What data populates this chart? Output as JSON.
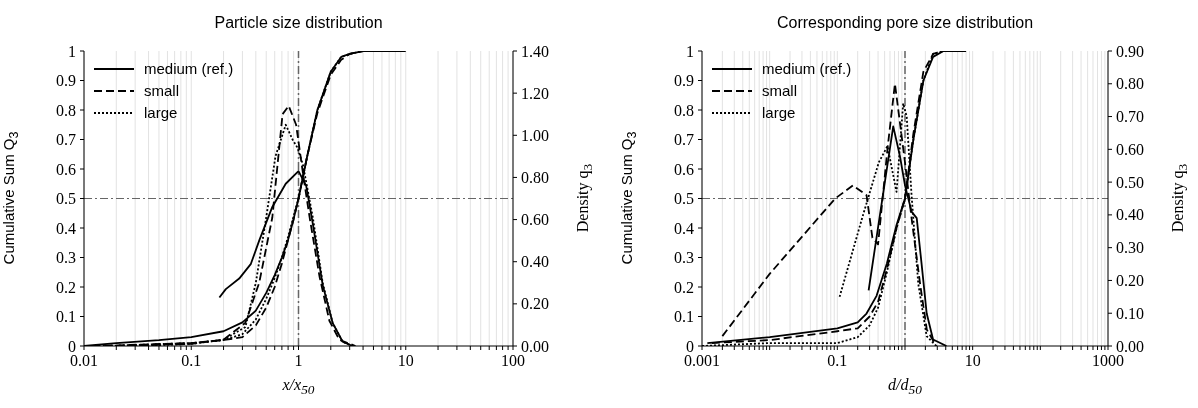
{
  "chart_data": [
    {
      "type": "line",
      "title": "Particle size distribution",
      "xlabel": "x/x$_{50}$",
      "ylabel": "Cumulative Sum Q$_{3}$",
      "y2label": "Density q$_{3}$",
      "log": "x",
      "grid": "x",
      "legend": "top left",
      "xlim": [
        0.01,
        100
      ],
      "xticks": [
        0.01,
        {
          "value": 0.02,
          "label": null
        },
        {
          "value": 0.03,
          "label": null
        },
        {
          "value": 0.04,
          "label": null
        },
        {
          "value": 0.05,
          "label": null
        },
        {
          "value": 0.06,
          "label": null
        },
        {
          "value": 0.07,
          "label": null
        },
        {
          "value": 0.08,
          "label": null
        },
        {
          "value": 0.09,
          "label": null
        },
        0.1,
        {
          "value": 0.2,
          "label": null
        },
        {
          "value": 0.3,
          "label": null
        },
        {
          "value": 0.4,
          "label": null
        },
        {
          "value": 0.5,
          "label": null
        },
        {
          "value": 0.6,
          "label": null
        },
        {
          "value": 0.7,
          "label": null
        },
        {
          "value": 0.8,
          "label": null
        },
        {
          "value": 0.9,
          "label": null
        },
        1,
        {
          "value": 2,
          "label": null
        },
        {
          "value": 3,
          "label": null
        },
        {
          "value": 4,
          "label": null
        },
        {
          "value": 5,
          "label": null
        },
        {
          "value": 6,
          "label": null
        },
        {
          "value": 7,
          "label": null
        },
        {
          "value": 8,
          "label": null
        },
        {
          "value": 9,
          "label": null
        },
        10,
        {
          "value": 20,
          "label": null
        },
        {
          "value": 30,
          "label": null
        },
        {
          "value": 40,
          "label": null
        },
        {
          "value": 50,
          "label": null
        },
        {
          "value": 60,
          "label": null
        },
        {
          "value": 70,
          "label": null
        },
        {
          "value": 80,
          "label": null
        },
        {
          "value": 90,
          "label": null
        },
        100
      ],
      "ylim": [
        0,
        1
      ],
      "yticks": [
        0,
        0.1,
        0.2,
        0.3,
        0.4,
        0.5,
        0.6,
        0.7,
        0.8,
        0.9,
        1
      ],
      "y2lim": [
        0,
        1.4
      ],
      "y2ticks": [
        {
          "value": 0,
          "label": "0.00"
        },
        {
          "value": 0.2,
          "label": "0.20"
        },
        {
          "value": 0.4,
          "label": "0.40"
        },
        {
          "value": 0.6,
          "label": "0.60"
        },
        {
          "value": 0.8,
          "label": "0.80"
        },
        {
          "value": 1,
          "label": "1.00"
        },
        {
          "value": 1.2,
          "label": "1.20"
        },
        {
          "value": 1.4,
          "label": "1.40"
        }
      ],
      "ref_lines": [
        {
          "axis": "x",
          "value": 1,
          "color": "#666666"
        },
        {
          "axis": "y",
          "value": 0.5,
          "color": "#666666"
        }
      ],
      "series": [
        {
          "name": "medium (ref.)",
          "color": "#000000",
          "line_style": "solid",
          "x": [
            0.01,
            0.02,
            0.05,
            0.1,
            0.2,
            0.3,
            0.4,
            0.5,
            0.6,
            0.7,
            0.8,
            0.9,
            1,
            1.2,
            1.5,
            2,
            2.5,
            3,
            4,
            10
          ],
          "values": [
            0,
            0.01,
            0.02,
            0.03,
            0.05,
            0.08,
            0.12,
            0.18,
            0.24,
            0.3,
            0.36,
            0.43,
            0.5,
            0.64,
            0.8,
            0.93,
            0.98,
            0.99,
            1,
            1
          ]
        },
        {
          "name": "small",
          "color": "#000000",
          "line_style": "dashed",
          "x": [
            0.012,
            0.1,
            0.2,
            0.3,
            0.4,
            0.5,
            0.6,
            0.7,
            0.8,
            0.9,
            1,
            1.2,
            1.5,
            2,
            2.5,
            3,
            4,
            6
          ],
          "values": [
            0,
            0.01,
            0.02,
            0.03,
            0.07,
            0.13,
            0.2,
            0.28,
            0.36,
            0.43,
            0.5,
            0.64,
            0.79,
            0.92,
            0.97,
            0.99,
            1,
            1
          ]
        },
        {
          "name": "large",
          "color": "#000000",
          "line_style": "dotted",
          "x": [
            0.015,
            0.1,
            0.2,
            0.3,
            0.4,
            0.5,
            0.6,
            0.7,
            0.8,
            0.9,
            1,
            1.2,
            1.5,
            2,
            2.5,
            3,
            4,
            8
          ],
          "values": [
            0,
            0.01,
            0.02,
            0.04,
            0.09,
            0.16,
            0.23,
            0.3,
            0.37,
            0.44,
            0.5,
            0.64,
            0.8,
            0.93,
            0.98,
            0.99,
            1,
            1
          ]
        },
        {
          "color": "#000000",
          "line_style": "solid",
          "axis": "y2",
          "x": [
            0.183,
            0.21,
            0.28,
            0.36,
            0.43,
            0.57,
            0.76,
            1,
            1.18,
            1.36,
            1.68,
            2.08,
            2.58,
            3.2
          ],
          "values": [
            0.23,
            0.27,
            0.32,
            0.39,
            0.5,
            0.66,
            0.77,
            0.83,
            0.76,
            0.58,
            0.29,
            0.11,
            0.02,
            0
          ]
        },
        {
          "color": "#000000",
          "line_style": "dashed",
          "axis": "y2",
          "x": [
            0.02,
            0.1,
            0.2,
            0.32,
            0.43,
            0.57,
            0.71,
            0.81,
            0.95,
            1.1,
            1.27,
            1.57,
            1.94,
            2.4,
            3.4
          ],
          "values": [
            0,
            0.01,
            0.03,
            0.11,
            0.3,
            0.61,
            1.1,
            1.14,
            1.05,
            0.82,
            0.61,
            0.33,
            0.12,
            0.03,
            0
          ]
        },
        {
          "color": "#000000",
          "line_style": "dotted",
          "axis": "y2",
          "x": [
            0.03,
            0.1,
            0.2,
            0.32,
            0.4,
            0.5,
            0.61,
            0.76,
            0.88,
            0.98,
            1.1,
            1.36,
            1.68,
            2.08,
            2.58,
            3.2
          ],
          "values": [
            0,
            0.01,
            0.03,
            0.09,
            0.3,
            0.61,
            0.9,
            1.05,
            0.98,
            0.94,
            0.86,
            0.61,
            0.3,
            0.11,
            0.02,
            0
          ]
        }
      ]
    },
    {
      "type": "line",
      "title": "Corresponding pore size distribution",
      "xlabel": "d/d$_{50}$",
      "ylabel": "Cumulative Sum Q$_{3}$",
      "y2label": "Density q$_{3}$",
      "log": "x",
      "grid": "x",
      "legend": "top left",
      "xlim": [
        0.001,
        1000
      ],
      "xticks": [
        0.001,
        {
          "value": 0.002,
          "label": null
        },
        {
          "value": 0.003,
          "label": null
        },
        {
          "value": 0.004,
          "label": null
        },
        {
          "value": 0.005,
          "label": null
        },
        {
          "value": 0.006,
          "label": null
        },
        {
          "value": 0.007,
          "label": null
        },
        {
          "value": 0.008,
          "label": null
        },
        {
          "value": 0.009,
          "label": null
        },
        {
          "value": 0.01,
          "label": null
        },
        {
          "value": 0.02,
          "label": null
        },
        {
          "value": 0.03,
          "label": null
        },
        {
          "value": 0.04,
          "label": null
        },
        {
          "value": 0.05,
          "label": null
        },
        {
          "value": 0.06,
          "label": null
        },
        {
          "value": 0.07,
          "label": null
        },
        {
          "value": 0.08,
          "label": null
        },
        {
          "value": 0.09,
          "label": null
        },
        0.1,
        {
          "value": 0.2,
          "label": null
        },
        {
          "value": 0.3,
          "label": null
        },
        {
          "value": 0.4,
          "label": null
        },
        {
          "value": 0.5,
          "label": null
        },
        {
          "value": 0.6,
          "label": null
        },
        {
          "value": 0.7,
          "label": null
        },
        {
          "value": 0.8,
          "label": null
        },
        {
          "value": 0.9,
          "label": null
        },
        {
          "value": 1,
          "label": null
        },
        {
          "value": 2,
          "label": null
        },
        {
          "value": 3,
          "label": null
        },
        {
          "value": 4,
          "label": null
        },
        {
          "value": 5,
          "label": null
        },
        {
          "value": 6,
          "label": null
        },
        {
          "value": 7,
          "label": null
        },
        {
          "value": 8,
          "label": null
        },
        {
          "value": 9,
          "label": null
        },
        10,
        {
          "value": 20,
          "label": null
        },
        {
          "value": 30,
          "label": null
        },
        {
          "value": 40,
          "label": null
        },
        {
          "value": 50,
          "label": null
        },
        {
          "value": 60,
          "label": null
        },
        {
          "value": 70,
          "label": null
        },
        {
          "value": 80,
          "label": null
        },
        {
          "value": 90,
          "label": null
        },
        {
          "value": 100,
          "label": null
        },
        {
          "value": 200,
          "label": null
        },
        {
          "value": 300,
          "label": null
        },
        {
          "value": 400,
          "label": null
        },
        {
          "value": 500,
          "label": null
        },
        {
          "value": 600,
          "label": null
        },
        {
          "value": 700,
          "label": null
        },
        {
          "value": 800,
          "label": null
        },
        {
          "value": 900,
          "label": null
        },
        1000
      ],
      "ylim": [
        0,
        1
      ],
      "yticks": [
        0,
        0.1,
        0.2,
        0.3,
        0.4,
        0.5,
        0.6,
        0.7,
        0.8,
        0.9,
        1
      ],
      "y2lim": [
        0,
        0.9
      ],
      "y2ticks": [
        {
          "value": 0,
          "label": "0.00"
        },
        {
          "value": 0.1,
          "label": "0.10"
        },
        {
          "value": 0.2,
          "label": "0.20"
        },
        {
          "value": 0.3,
          "label": "0.30"
        },
        {
          "value": 0.4,
          "label": "0.40"
        },
        {
          "value": 0.5,
          "label": "0.50"
        },
        {
          "value": 0.6,
          "label": "0.60"
        },
        {
          "value": 0.7,
          "label": "0.70"
        },
        {
          "value": 0.8,
          "label": "0.80"
        },
        {
          "value": 0.9,
          "label": "0.90"
        }
      ],
      "ref_lines": [
        {
          "axis": "x",
          "value": 1,
          "color": "#666666"
        },
        {
          "axis": "y",
          "value": 0.5,
          "color": "#666666"
        }
      ],
      "series": [
        {
          "name": "medium (ref.)",
          "color": "#000000",
          "line_style": "solid",
          "x": [
            0.0012,
            0.01,
            0.1,
            0.2,
            0.27,
            0.38,
            0.54,
            0.75,
            1,
            1.33,
            1.87,
            2.6,
            3.7,
            8
          ],
          "values": [
            0.01,
            0.03,
            0.06,
            0.08,
            0.11,
            0.17,
            0.28,
            0.41,
            0.5,
            0.7,
            0.9,
            0.98,
            1,
            1
          ]
        },
        {
          "name": "small",
          "color": "#000000",
          "line_style": "dashed",
          "x": [
            0.0014,
            0.01,
            0.1,
            0.2,
            0.3,
            0.4,
            0.54,
            0.75,
            1,
            1.33,
            1.87,
            2.6,
            3.7,
            6
          ],
          "values": [
            0.01,
            0.02,
            0.05,
            0.06,
            0.1,
            0.15,
            0.26,
            0.4,
            0.5,
            0.72,
            0.93,
            0.99,
            1,
            1
          ]
        },
        {
          "name": "large",
          "color": "#000000",
          "line_style": "dotted",
          "x": [
            0.001,
            0.01,
            0.1,
            0.2,
            0.3,
            0.4,
            0.54,
            0.75,
            1,
            1.33,
            1.87,
            2.6,
            3.7,
            8
          ],
          "values": [
            0,
            0.01,
            0.01,
            0.03,
            0.07,
            0.13,
            0.25,
            0.4,
            0.5,
            0.7,
            0.9,
            0.99,
            1,
            1
          ]
        },
        {
          "color": "#000000",
          "line_style": "solid",
          "axis": "y2",
          "x": [
            0.29,
            0.67,
            0.84,
            1,
            1.25,
            1.49,
            1.76,
            2.09,
            2.6,
            4.1
          ],
          "values": [
            0.17,
            0.67,
            0.58,
            0.49,
            0.41,
            0.39,
            0.25,
            0.1,
            0.02,
            0
          ]
        },
        {
          "color": "#000000",
          "line_style": "dashed",
          "axis": "y2",
          "x": [
            0.002,
            0.01,
            0.093,
            0.17,
            0.27,
            0.33,
            0.4,
            0.55,
            0.71,
            1,
            1.25,
            1.67,
            2.1,
            2.9
          ],
          "values": [
            0.03,
            0.22,
            0.45,
            0.49,
            0.46,
            0.33,
            0.31,
            0.6,
            0.8,
            0.56,
            0.39,
            0.19,
            0.05,
            0
          ]
        },
        {
          "color": "#000000",
          "line_style": "dotted",
          "axis": "y2",
          "x": [
            0.108,
            0.24,
            0.41,
            0.55,
            0.75,
            0.94,
            1.06,
            1.25,
            1.57,
            2.09,
            2.9
          ],
          "values": [
            0.15,
            0.4,
            0.56,
            0.61,
            0.47,
            0.74,
            0.7,
            0.46,
            0.19,
            0.03,
            0
          ]
        }
      ]
    }
  ]
}
